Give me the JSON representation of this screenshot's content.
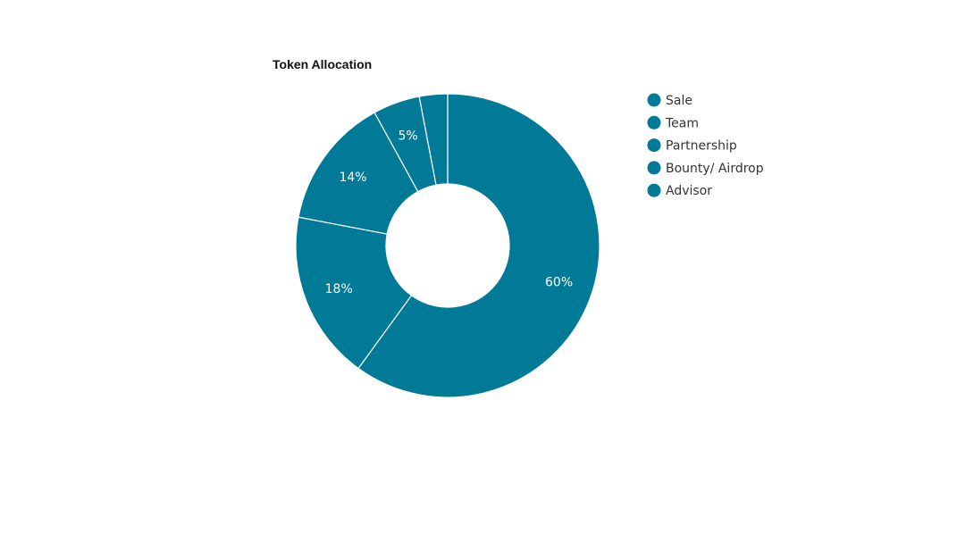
{
  "chart_data": {
    "type": "pie",
    "title": "Token Allocation",
    "donut": true,
    "categories": [
      "Sale",
      "Team",
      "Partnership",
      "Bounty/ Airdrop",
      "Advisor"
    ],
    "values": [
      60,
      18,
      14,
      5,
      3
    ],
    "data_labels": [
      "60%",
      "18%",
      "14%",
      "5%",
      ""
    ],
    "colors": [
      "#007a96",
      "#007a96",
      "#007a96",
      "#007a96",
      "#007a96"
    ],
    "slice_border_color": "#ffffff",
    "start_angle_deg": 0,
    "direction": "clockwise",
    "legend_position": "right",
    "grid": false
  }
}
